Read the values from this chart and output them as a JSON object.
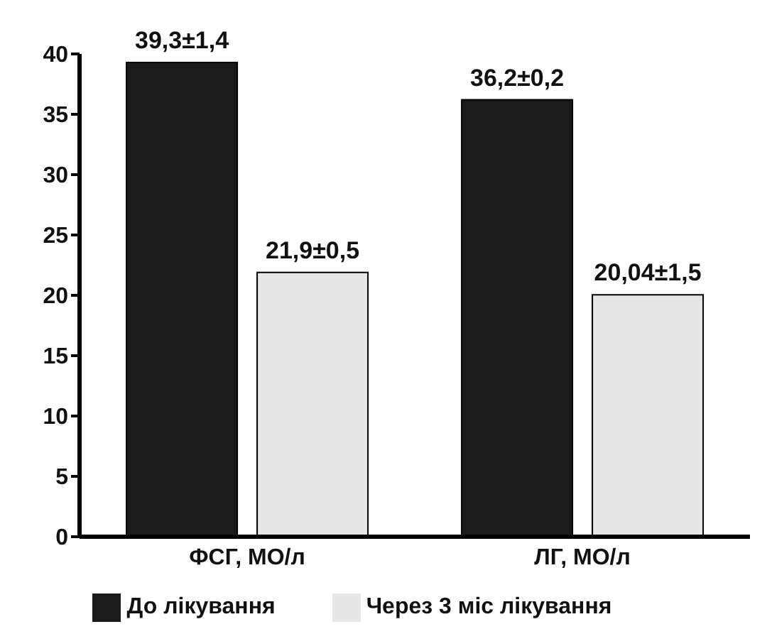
{
  "chart_data": {
    "type": "bar",
    "categories": [
      "ФСГ, МО/л",
      "ЛГ, МО/л"
    ],
    "series": [
      {
        "name": "До лікування",
        "color": "#1a1a1a",
        "values": [
          39.3,
          36.2
        ],
        "value_labels": [
          "39,3±1,4",
          "36,2±0,2"
        ]
      },
      {
        "name": "Через 3 міс лікування",
        "color": "#e6e6e6",
        "values": [
          21.9,
          20.04
        ],
        "value_labels": [
          "21,9±0,5",
          "20,04±1,5"
        ]
      }
    ],
    "ylim": [
      0,
      40
    ],
    "yticks": [
      0,
      5,
      10,
      15,
      20,
      25,
      30,
      35,
      40
    ],
    "grid": false,
    "legend": "bottom"
  }
}
